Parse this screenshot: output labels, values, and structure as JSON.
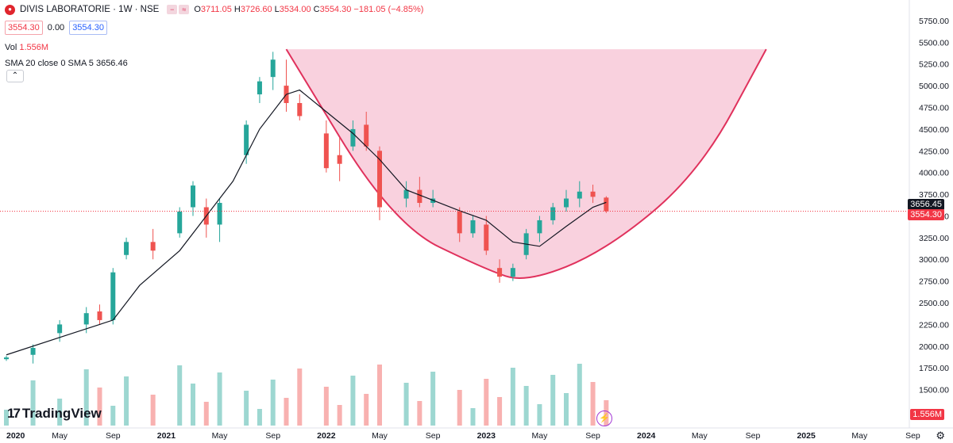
{
  "header": {
    "logo_icon": "divis-logo-icon",
    "symbol": "DIVIS LABORATORIE · 1W · NSE",
    "o_label": "O",
    "o": "3711.05",
    "h_label": "H",
    "h": "3726.60",
    "l_label": "L",
    "l": "3534.00",
    "c_label": "C",
    "c": "3554.30",
    "change": "−181.05 (−4.85%)",
    "bid": "3554.30",
    "spread": "0.00",
    "ask": "3554.30"
  },
  "indicators": {
    "vol_label": "Vol",
    "vol_value": "1.556M",
    "sma_label": "SMA 20 close 0 SMA 5",
    "sma_value": "3656.46"
  },
  "price_tags": {
    "sma": "3656.45",
    "last": "3554.30",
    "volume": "1.556M"
  },
  "watermark": "TradingView",
  "colors": {
    "up": "#26a69a",
    "down": "#ef5350",
    "sma": "#131722",
    "pattern_fill": "#f8c6d6",
    "pattern_line": "#e0315c",
    "last_price": "#f23645"
  },
  "chart_data": {
    "type": "candlestick",
    "title": "DIVIS LABORATORIE · 1W · NSE",
    "y_axis_ticks": [
      "1500.00",
      "1750.00",
      "2000.00",
      "2250.00",
      "2500.00",
      "2750.00",
      "3000.00",
      "3250.00",
      "3500.00",
      "3750.00",
      "4000.00",
      "4250.00",
      "4500.00",
      "4750.00",
      "5000.00",
      "5250.00",
      "5500.00",
      "5750.00"
    ],
    "y_range": [
      1350,
      5850
    ],
    "x_axis_ticks": [
      "2020",
      "May",
      "Sep",
      "2021",
      "May",
      "Sep",
      "2022",
      "May",
      "Sep",
      "2023",
      "May",
      "Sep",
      "2024",
      "May",
      "Sep",
      "2025",
      "May",
      "Sep"
    ],
    "x_range": [
      "2020-01",
      "2025-11"
    ],
    "series": [
      {
        "type": "candles",
        "points": [
          {
            "date": "2020-01",
            "o": 1850,
            "h": 1890,
            "l": 1830,
            "c": 1870
          },
          {
            "date": "2020-03",
            "o": 1900,
            "h": 2020,
            "l": 1800,
            "c": 1980
          },
          {
            "date": "2020-05",
            "o": 2150,
            "h": 2300,
            "l": 2050,
            "c": 2250
          },
          {
            "date": "2020-07",
            "o": 2250,
            "h": 2450,
            "l": 2150,
            "c": 2380
          },
          {
            "date": "2020-08",
            "o": 2400,
            "h": 2480,
            "l": 2250,
            "c": 2300
          },
          {
            "date": "2020-09",
            "o": 2300,
            "h": 2900,
            "l": 2250,
            "c": 2850
          },
          {
            "date": "2020-10",
            "o": 3050,
            "h": 3250,
            "l": 3000,
            "c": 3200
          },
          {
            "date": "2020-12",
            "o": 3200,
            "h": 3350,
            "l": 3000,
            "c": 3100
          },
          {
            "date": "2021-02",
            "o": 3300,
            "h": 3600,
            "l": 3250,
            "c": 3550
          },
          {
            "date": "2021-03",
            "o": 3600,
            "h": 3900,
            "l": 3500,
            "c": 3850
          },
          {
            "date": "2021-04",
            "o": 3600,
            "h": 3700,
            "l": 3250,
            "c": 3400
          },
          {
            "date": "2021-05",
            "o": 3400,
            "h": 3700,
            "l": 3200,
            "c": 3650
          },
          {
            "date": "2021-07",
            "o": 4200,
            "h": 4600,
            "l": 4100,
            "c": 4550
          },
          {
            "date": "2021-08",
            "o": 4900,
            "h": 5100,
            "l": 4800,
            "c": 5050
          },
          {
            "date": "2021-09",
            "o": 5100,
            "h": 5390,
            "l": 4950,
            "c": 5300
          },
          {
            "date": "2021-10",
            "o": 5000,
            "h": 5300,
            "l": 4700,
            "c": 4800
          },
          {
            "date": "2021-11",
            "o": 4800,
            "h": 4900,
            "l": 4600,
            "c": 4650
          },
          {
            "date": "2022-01",
            "o": 4450,
            "h": 4600,
            "l": 4000,
            "c": 4050
          },
          {
            "date": "2022-02",
            "o": 4200,
            "h": 4400,
            "l": 3900,
            "c": 4100
          },
          {
            "date": "2022-03",
            "o": 4300,
            "h": 4600,
            "l": 4250,
            "c": 4500
          },
          {
            "date": "2022-04",
            "o": 4550,
            "h": 4700,
            "l": 4250,
            "c": 4300
          },
          {
            "date": "2022-05",
            "o": 4250,
            "h": 4300,
            "l": 3450,
            "c": 3600
          },
          {
            "date": "2022-07",
            "o": 3700,
            "h": 3900,
            "l": 3600,
            "c": 3800
          },
          {
            "date": "2022-08",
            "o": 3800,
            "h": 3950,
            "l": 3600,
            "c": 3650
          },
          {
            "date": "2022-09",
            "o": 3650,
            "h": 3800,
            "l": 3600,
            "c": 3700
          },
          {
            "date": "2022-11",
            "o": 3550,
            "h": 3600,
            "l": 3200,
            "c": 3300
          },
          {
            "date": "2022-12",
            "o": 3300,
            "h": 3500,
            "l": 3250,
            "c": 3450
          },
          {
            "date": "2023-01",
            "o": 3400,
            "h": 3500,
            "l": 3050,
            "c": 3100
          },
          {
            "date": "2023-02",
            "o": 2900,
            "h": 3000,
            "l": 2730,
            "c": 2800
          },
          {
            "date": "2023-03",
            "o": 2800,
            "h": 2950,
            "l": 2750,
            "c": 2900
          },
          {
            "date": "2023-04",
            "o": 3050,
            "h": 3350,
            "l": 3000,
            "c": 3300
          },
          {
            "date": "2023-05",
            "o": 3300,
            "h": 3500,
            "l": 3200,
            "c": 3450
          },
          {
            "date": "2023-06",
            "o": 3450,
            "h": 3650,
            "l": 3400,
            "c": 3600
          },
          {
            "date": "2023-07",
            "o": 3600,
            "h": 3800,
            "l": 3550,
            "c": 3700
          },
          {
            "date": "2023-08",
            "o": 3700,
            "h": 3900,
            "l": 3600,
            "c": 3780
          },
          {
            "date": "2023-09",
            "o": 3780,
            "h": 3860,
            "l": 3650,
            "c": 3720
          },
          {
            "date": "2023-10",
            "o": 3711.05,
            "h": 3726.6,
            "l": 3534,
            "c": 3554.3
          }
        ]
      },
      {
        "type": "line",
        "name": "SMA 20",
        "points": [
          {
            "date": "2020-01",
            "y": 1900
          },
          {
            "date": "2020-06",
            "y": 2150
          },
          {
            "date": "2020-09",
            "y": 2300
          },
          {
            "date": "2020-11",
            "y": 2700
          },
          {
            "date": "2021-02",
            "y": 3100
          },
          {
            "date": "2021-04",
            "y": 3500
          },
          {
            "date": "2021-06",
            "y": 3900
          },
          {
            "date": "2021-08",
            "y": 4500
          },
          {
            "date": "2021-10",
            "y": 4900
          },
          {
            "date": "2021-11",
            "y": 4950
          },
          {
            "date": "2022-01",
            "y": 4700
          },
          {
            "date": "2022-03",
            "y": 4450
          },
          {
            "date": "2022-05",
            "y": 4150
          },
          {
            "date": "2022-07",
            "y": 3800
          },
          {
            "date": "2022-09",
            "y": 3680
          },
          {
            "date": "2022-11",
            "y": 3560
          },
          {
            "date": "2023-01",
            "y": 3450
          },
          {
            "date": "2023-03",
            "y": 3200
          },
          {
            "date": "2023-05",
            "y": 3150
          },
          {
            "date": "2023-07",
            "y": 3380
          },
          {
            "date": "2023-09",
            "y": 3600
          },
          {
            "date": "2023-10",
            "y": 3656.46
          }
        ]
      },
      {
        "type": "drawing",
        "name": "cup pattern",
        "points": [
          {
            "date": "2021-10",
            "y": 5420
          },
          {
            "date": "2022-06",
            "y": 3400
          },
          {
            "date": "2023-01",
            "y": 2880
          },
          {
            "date": "2023-04",
            "y": 2730
          },
          {
            "date": "2023-10",
            "y": 3100
          },
          {
            "date": "2024-05",
            "y": 4000
          },
          {
            "date": "2024-10",
            "y": 5420
          }
        ]
      }
    ],
    "grid": false,
    "scale": "linear"
  }
}
